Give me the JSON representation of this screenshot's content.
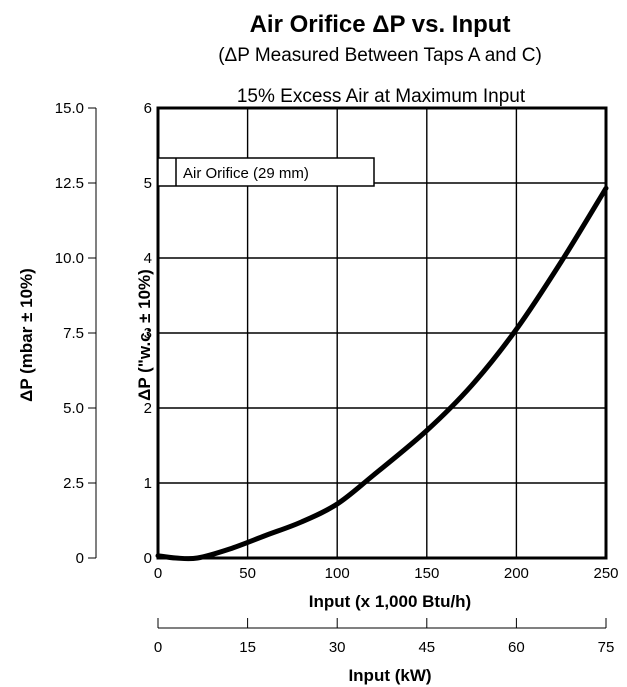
{
  "chart_data": {
    "type": "line",
    "title": "Air Orifice ΔP vs. Input",
    "subtitle": "(ΔP Measured Between Taps A and C)",
    "condition": "15% Excess Air at Maximum Input",
    "legend": [
      "Air Orifice (29 mm)"
    ],
    "legend_placement": "top-left",
    "grid": true,
    "xlabel": "Input (x 1,000 Btu/h)",
    "xlim": [
      0,
      250
    ],
    "xticks": [
      "0",
      "50",
      "100",
      "150",
      "200",
      "250"
    ],
    "x2label": "Input (kW)",
    "x2ticks": [
      "0",
      "15",
      "30",
      "45",
      "60",
      "75"
    ],
    "ylabel": "ΔP (\"w.c. ± 10%)",
    "ylim": [
      0,
      6
    ],
    "yticks": [
      "0",
      "1",
      "2",
      "3",
      "4",
      "5",
      "6"
    ],
    "y2label": "ΔP (mbar ± 10%)",
    "y2ticks": [
      "0",
      "2.5",
      "5.0",
      "7.5",
      "10.0",
      "12.5",
      "15.0"
    ],
    "series": [
      {
        "name": "Air Orifice (29 mm)",
        "x": [
          0,
          10,
          22,
          40,
          60,
          80,
          100,
          120,
          150,
          175,
          200,
          225,
          250
        ],
        "y": [
          0.03,
          0.0,
          0.0,
          0.12,
          0.3,
          0.48,
          0.72,
          1.1,
          1.7,
          2.3,
          3.05,
          3.95,
          4.93
        ]
      }
    ]
  }
}
